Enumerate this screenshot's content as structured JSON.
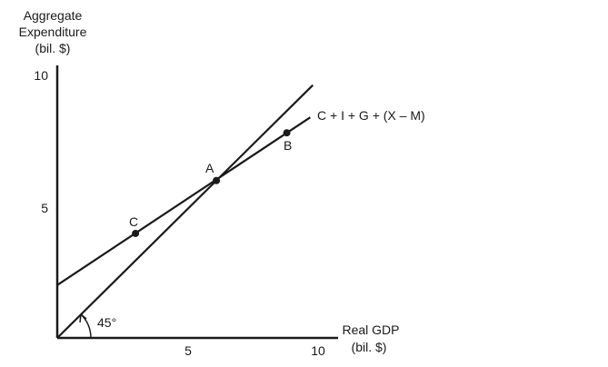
{
  "chart_data": {
    "type": "line",
    "title": "",
    "ylabel": [
      "Aggregate",
      "Expenditure",
      "(bil. $)"
    ],
    "xlabel": [
      "Real GDP",
      "(bil. $)"
    ],
    "xlim": [
      0,
      10
    ],
    "ylim": [
      0,
      10
    ],
    "x_ticks": [
      5,
      10
    ],
    "y_ticks": [
      5,
      10
    ],
    "grid": false,
    "series": [
      {
        "name": "45° line",
        "x": [
          0,
          9.8
        ],
        "y": [
          0,
          9.8
        ],
        "color": "#1a1a1a"
      },
      {
        "name": "C + I + G + (X – M)",
        "x": [
          0,
          9.7
        ],
        "y": [
          2.05,
          8.55
        ],
        "color": "#1a1a1a"
      }
    ],
    "points": [
      {
        "label": "A",
        "x": 6.1,
        "y": 6.1
      },
      {
        "label": "B",
        "x": 8.8,
        "y": 7.95
      },
      {
        "label": "C",
        "x": 3.0,
        "y": 4.05
      }
    ],
    "annotations": [
      {
        "text": "45°"
      }
    ]
  }
}
